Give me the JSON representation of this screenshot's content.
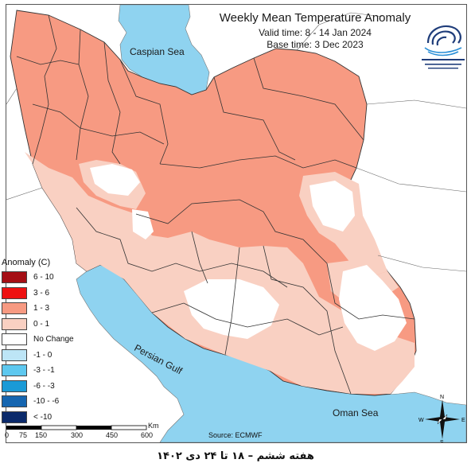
{
  "header": {
    "title": "Weekly Mean Temperature Anomaly",
    "valid_time": "Valid time: 8 - 14 Jan 2024",
    "base_time": "Base time: 3 Dec 2023"
  },
  "map_labels": {
    "caspian_sea": "Caspian Sea",
    "persian_gulf": "Persian Gulf",
    "oman_sea": "Oman Sea"
  },
  "legend": {
    "title": "Anomaly (C)",
    "items": [
      {
        "label": "6 - 10",
        "color": "#a50f15"
      },
      {
        "label": "3 - 6",
        "color": "#ee1111"
      },
      {
        "label": "1 - 3",
        "color": "#f79a82"
      },
      {
        "label": "0 - 1",
        "color": "#f9d0c2"
      },
      {
        "label": "No Change",
        "color": "#ffffff"
      },
      {
        "label": "-1 - 0",
        "color": "#bde5f6"
      },
      {
        "label": "-3 - -1",
        "color": "#5ec8ef"
      },
      {
        "label": "-6 - -3",
        "color": "#1a9ad6"
      },
      {
        "label": "-10 - -6",
        "color": "#1565b0"
      },
      {
        "label": "< -10",
        "color": "#0b2a6b"
      }
    ]
  },
  "scale_bar": {
    "unit": "Km",
    "ticks": [
      "0",
      "75",
      "150",
      "300",
      "450",
      "600"
    ]
  },
  "compass": {
    "n": "N",
    "s": "S",
    "e": "E",
    "w": "W"
  },
  "source": "Source: ECMWF",
  "caption": "هفته ششم – ۱۸ تا ۲۴ دی ۱۴۰۲",
  "colors": {
    "sea": "#8fd3f0",
    "warm_1_3": "#f79a82",
    "warm_0_1": "#f9d0c2",
    "no_change": "#ffffff",
    "border": "#333333"
  }
}
